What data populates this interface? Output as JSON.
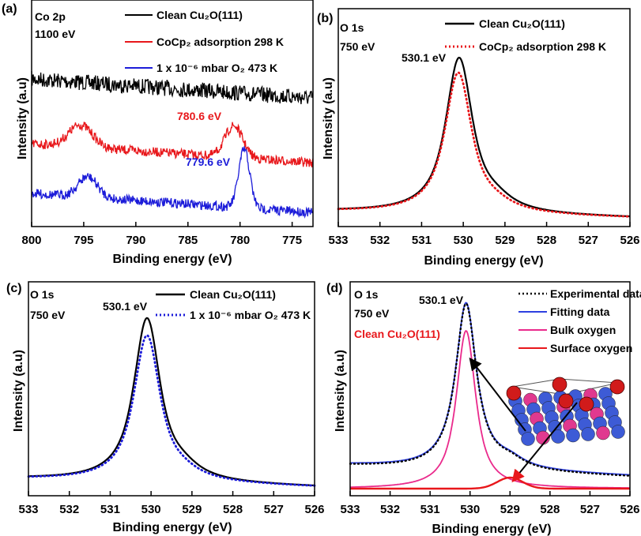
{
  "chart_data": [
    {
      "panel": "(a)",
      "type": "line",
      "title_lines": [
        "Co 2p",
        "1100 eV"
      ],
      "xlabel": "Binding energy (eV)",
      "ylabel": "Intensity (a.u)",
      "xlim": [
        800,
        773
      ],
      "xticks": [
        800,
        795,
        790,
        785,
        780,
        775
      ],
      "series": [
        {
          "name": "Clean Cu₂O(111)",
          "color": "#000000",
          "style": "solid"
        },
        {
          "name": "CoCp₂ adsorption 298 K",
          "color": "#e8171b",
          "style": "solid"
        },
        {
          "name": "1 x 10⁻⁶ mbar O₂ 473 K",
          "color": "#1c1cd9",
          "style": "solid"
        }
      ],
      "annotations": [
        {
          "text": "780.6 eV",
          "color": "#e8171b"
        },
        {
          "text": "779.6 eV",
          "color": "#1c1cd9"
        }
      ]
    },
    {
      "panel": "(b)",
      "type": "line",
      "title_lines": [
        "O 1s",
        "750 eV"
      ],
      "xlabel": "Binding energy (eV)",
      "ylabel": "Intensity (a.u)",
      "xlim": [
        533,
        526
      ],
      "xticks": [
        533,
        532,
        531,
        530,
        529,
        528,
        527,
        526
      ],
      "series": [
        {
          "name": "Clean Cu₂O(111)",
          "color": "#000000",
          "style": "solid",
          "peak": 530.1
        },
        {
          "name": "CoCp₂ adsorption 298 K",
          "color": "#e8171b",
          "style": "dotted",
          "peak": 530.1
        }
      ],
      "annotations": [
        {
          "text": "530.1 eV",
          "color": "#000000"
        }
      ]
    },
    {
      "panel": "(c)",
      "type": "line",
      "title_lines": [
        "O 1s",
        "750 eV"
      ],
      "xlabel": "Binding energy (eV)",
      "ylabel": "Intensity (a.u)",
      "xlim": [
        533,
        526
      ],
      "xticks": [
        533,
        532,
        531,
        530,
        529,
        528,
        527,
        526
      ],
      "series": [
        {
          "name": "Clean Cu₂O(111)",
          "color": "#000000",
          "style": "solid",
          "peak": 530.1
        },
        {
          "name": "1 x 10⁻⁶ mbar O₂ 473 K",
          "color": "#1c1cd9",
          "style": "dotted",
          "peak": 530.1
        }
      ],
      "annotations": [
        {
          "text": "530.1 eV",
          "color": "#000000"
        }
      ]
    },
    {
      "panel": "(d)",
      "type": "line",
      "title_lines": [
        "O 1s",
        "750 eV"
      ],
      "xlabel": "Binding energy (eV)",
      "ylabel": "Intensity (a.u)",
      "xlim": [
        533,
        526
      ],
      "xticks": [
        533,
        532,
        531,
        530,
        529,
        528,
        527,
        526
      ],
      "series": [
        {
          "name": "Experimental data",
          "color": "#000000",
          "style": "dotted"
        },
        {
          "name": "Fitting data",
          "color": "#2d3fe0",
          "style": "solid"
        },
        {
          "name": "Bulk oxygen",
          "color": "#ea2a8c",
          "style": "solid",
          "peak": 530.1
        },
        {
          "name": "Surface oxygen",
          "color": "#e8171b",
          "style": "solid",
          "peak": 529.0
        }
      ],
      "annotations": [
        {
          "text": "530.1 eV",
          "color": "#000000"
        },
        {
          "text": "Clean Cu₂O(111)",
          "color": "#e8171b"
        }
      ]
    }
  ]
}
